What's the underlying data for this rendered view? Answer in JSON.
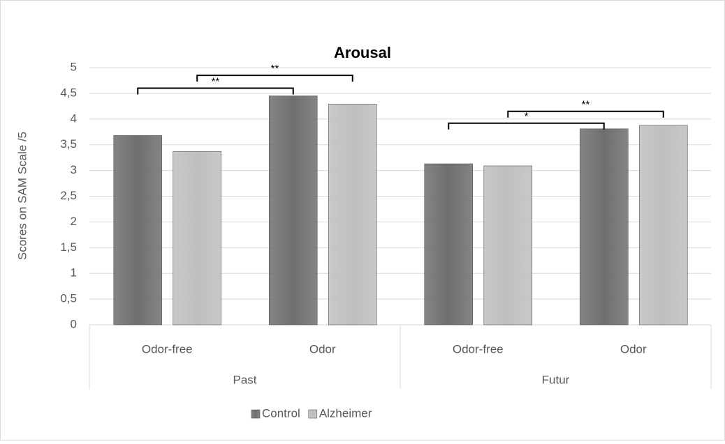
{
  "chart_data": {
    "type": "bar",
    "title": "Arousal",
    "y_label": "Scores on SAM Scale /5",
    "categories": [
      "Odor-free",
      "Odor",
      "Odor-free",
      "Odor"
    ],
    "groups": [
      "Past",
      "Futur"
    ],
    "series": [
      {
        "name": "Control",
        "color": "#6f6f6f",
        "values": [
          3.68,
          4.45,
          3.13,
          3.81
        ]
      },
      {
        "name": "Alzheimer",
        "color": "#bfbfbf",
        "values": [
          3.37,
          4.29,
          3.09,
          3.88
        ]
      }
    ],
    "ylim": [
      0,
      5
    ],
    "yticks": [
      0,
      {
        "value": 0.5,
        "label": "0,5"
      },
      1,
      {
        "value": 1.5,
        "label": "1,5"
      },
      2,
      {
        "value": 2.5,
        "label": "2,5"
      },
      3,
      {
        "value": 3.5,
        "label": "3,5"
      },
      4,
      {
        "value": 4.5,
        "label": "4,5"
      },
      5
    ],
    "grid": true,
    "legend": "bottom",
    "annotations": [
      {
        "text": "**",
        "series": 0,
        "from": 0,
        "to": 1,
        "y": 4.6
      },
      {
        "text": "**",
        "series": 1,
        "from": 0,
        "to": 1,
        "y": 4.85
      },
      {
        "text": "*",
        "series": 0,
        "from": 2,
        "to": 3,
        "y": 3.92
      },
      {
        "text": "**",
        "series": 1,
        "from": 2,
        "to": 3,
        "y": 4.15
      }
    ]
  }
}
